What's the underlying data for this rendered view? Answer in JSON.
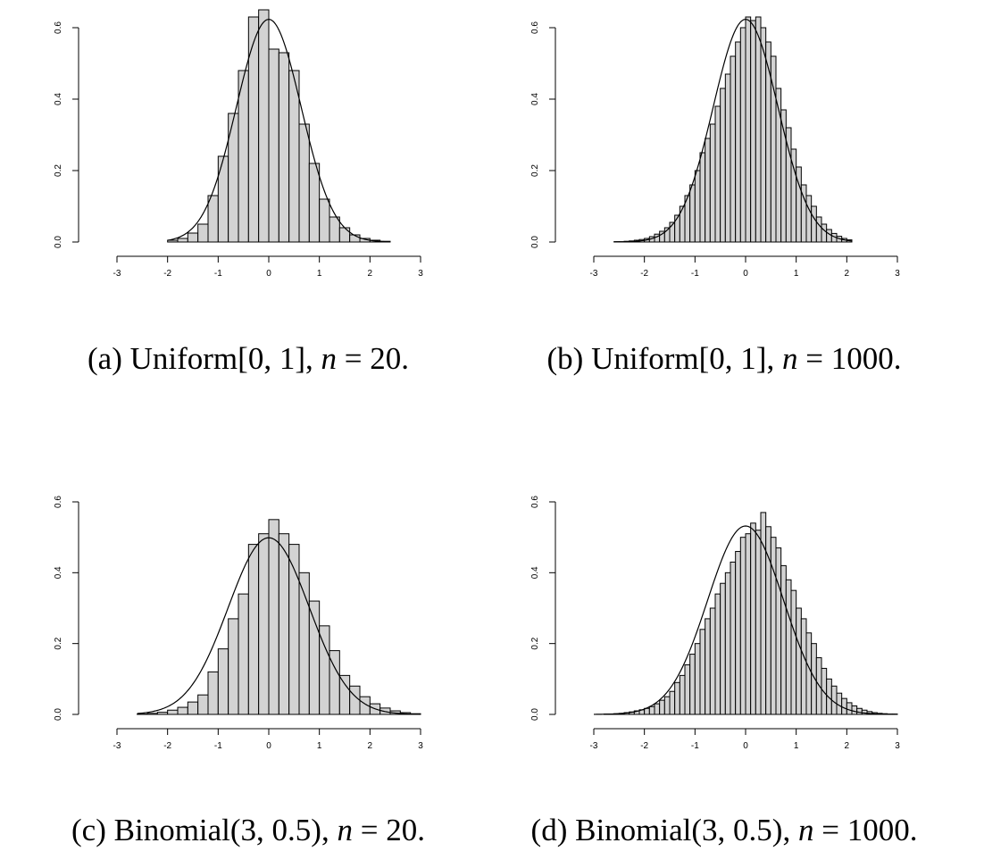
{
  "chart_data": [
    {
      "type": "bar",
      "caption": {
        "label": "(a)",
        "dist": "Uniform[0, 1],",
        "n_var": "n",
        "eq": "= 20."
      },
      "bin_start": -2.0,
      "bin_width": 0.2,
      "values": [
        0.005,
        0.01,
        0.025,
        0.05,
        0.13,
        0.24,
        0.36,
        0.48,
        0.63,
        0.65,
        0.54,
        0.53,
        0.48,
        0.33,
        0.22,
        0.12,
        0.07,
        0.04,
        0.02,
        0.01,
        0.005,
        0.002
      ],
      "curve_sd": 0.64,
      "xlim": [
        -3,
        3
      ],
      "ylim": [
        0,
        0.6
      ],
      "xticks": [
        "-3",
        "-2",
        "-1",
        "0",
        "1",
        "2",
        "3"
      ],
      "yticks": [
        "0.0",
        "0.2",
        "0.4",
        "0.6"
      ]
    },
    {
      "type": "bar",
      "caption": {
        "label": "(b)",
        "dist": "Uniform[0, 1],",
        "n_var": "n",
        "eq": "= 1000."
      },
      "bin_start": -2.6,
      "bin_width": 0.1,
      "values": [
        0.001,
        0.001,
        0.002,
        0.003,
        0.005,
        0.007,
        0.01,
        0.015,
        0.022,
        0.03,
        0.04,
        0.055,
        0.075,
        0.1,
        0.13,
        0.16,
        0.2,
        0.25,
        0.29,
        0.33,
        0.38,
        0.43,
        0.47,
        0.52,
        0.56,
        0.6,
        0.63,
        0.62,
        0.63,
        0.6,
        0.56,
        0.52,
        0.43,
        0.37,
        0.32,
        0.26,
        0.21,
        0.16,
        0.13,
        0.1,
        0.07,
        0.05,
        0.035,
        0.024,
        0.016,
        0.01,
        0.006
      ],
      "curve_sd": 0.64,
      "xlim": [
        -3,
        3
      ],
      "ylim": [
        0,
        0.6
      ],
      "xticks": [
        "-3",
        "-2",
        "-1",
        "0",
        "1",
        "2",
        "3"
      ],
      "yticks": [
        "0.0",
        "0.2",
        "0.4",
        "0.6"
      ]
    },
    {
      "type": "bar",
      "caption": {
        "label": "(c)",
        "dist": "Binomial(3, 0.5),",
        "n_var": "n",
        "eq": "= 20."
      },
      "bin_start": -2.6,
      "bin_width": 0.2,
      "values": [
        0.001,
        0.003,
        0.006,
        0.012,
        0.02,
        0.035,
        0.055,
        0.12,
        0.185,
        0.27,
        0.34,
        0.48,
        0.51,
        0.55,
        0.51,
        0.48,
        0.4,
        0.32,
        0.25,
        0.18,
        0.11,
        0.08,
        0.05,
        0.03,
        0.018,
        0.01,
        0.005,
        0.002
      ],
      "curve_sd": 0.8,
      "xlim": [
        -3,
        3
      ],
      "ylim": [
        0,
        0.6
      ],
      "xticks": [
        "-3",
        "-2",
        "-1",
        "0",
        "1",
        "2",
        "3"
      ],
      "yticks": [
        "0.0",
        "0.2",
        "0.4",
        "0.6"
      ]
    },
    {
      "type": "bar",
      "caption": {
        "label": "(d)",
        "dist": "Binomial(3, 0.5),",
        "n_var": "n",
        "eq": "= 1000."
      },
      "bin_start": -3.0,
      "bin_width": 0.1,
      "values": [
        0.0,
        0.0,
        0.001,
        0.001,
        0.002,
        0.003,
        0.005,
        0.007,
        0.01,
        0.013,
        0.017,
        0.022,
        0.03,
        0.04,
        0.05,
        0.065,
        0.09,
        0.11,
        0.14,
        0.17,
        0.2,
        0.24,
        0.27,
        0.3,
        0.34,
        0.37,
        0.4,
        0.43,
        0.46,
        0.5,
        0.51,
        0.54,
        0.52,
        0.57,
        0.53,
        0.5,
        0.47,
        0.42,
        0.38,
        0.35,
        0.3,
        0.27,
        0.23,
        0.2,
        0.16,
        0.13,
        0.1,
        0.08,
        0.06,
        0.045,
        0.033,
        0.024,
        0.017,
        0.012,
        0.008,
        0.005,
        0.003,
        0.002,
        0.001,
        0.001
      ],
      "curve_sd": 0.75,
      "xlim": [
        -3,
        3
      ],
      "ylim": [
        0,
        0.6
      ],
      "xticks": [
        "-3",
        "-2",
        "-1",
        "0",
        "1",
        "2",
        "3"
      ],
      "yticks": [
        "0.0",
        "0.2",
        "0.4",
        "0.6"
      ]
    }
  ]
}
